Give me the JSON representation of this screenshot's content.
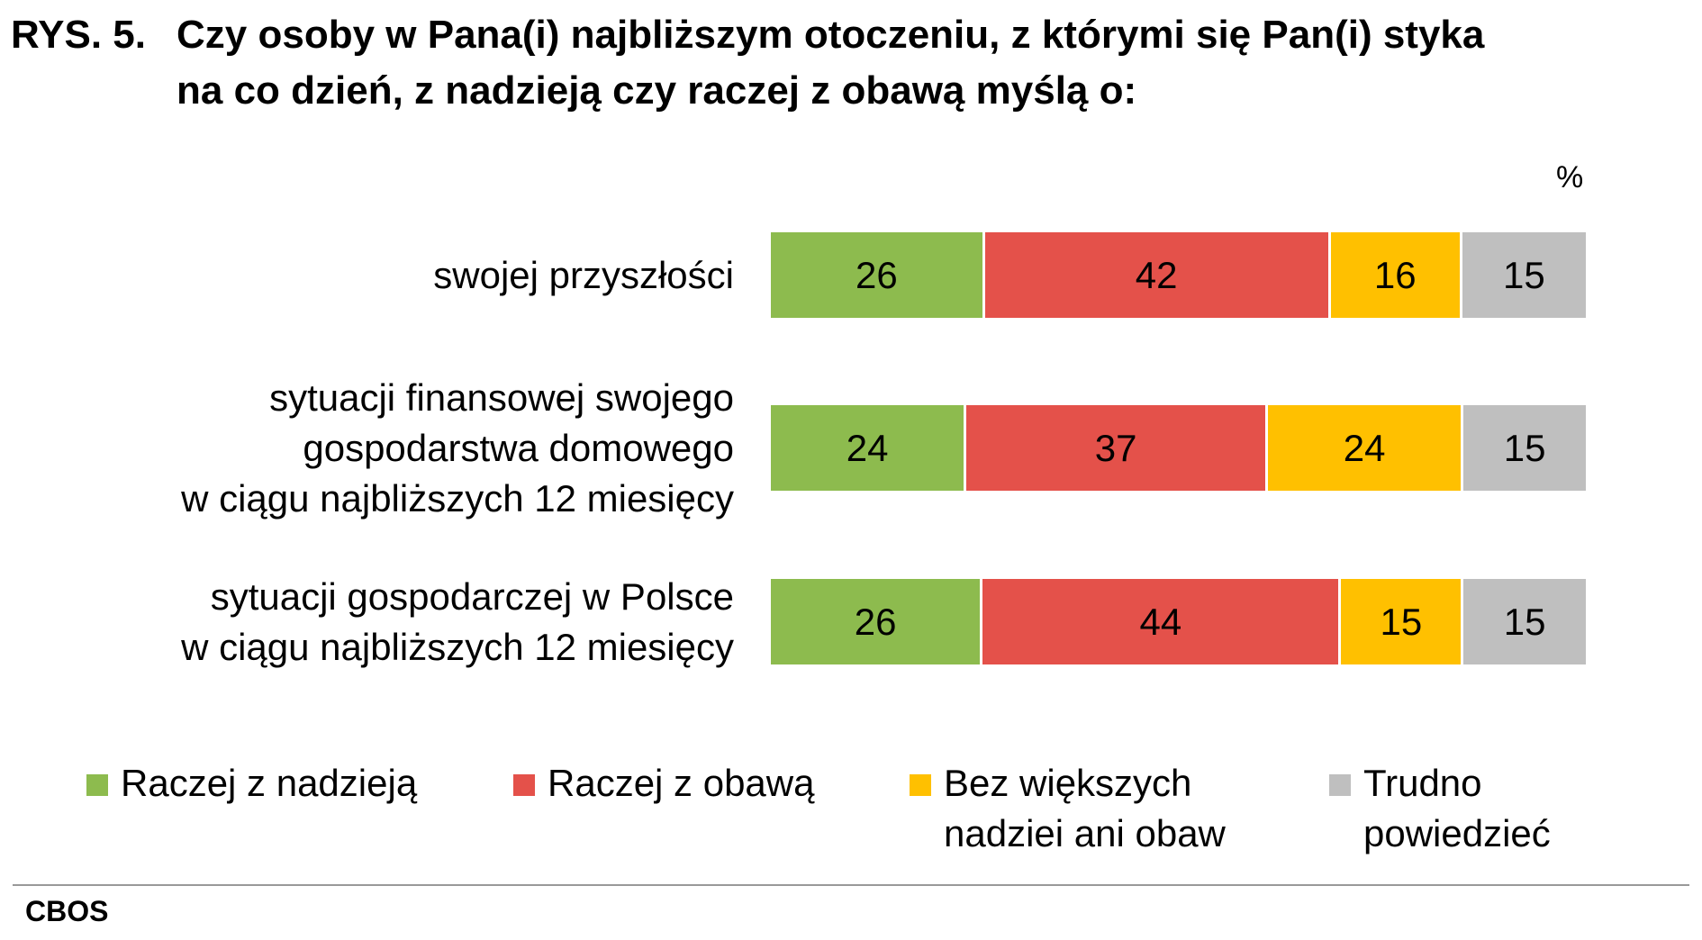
{
  "title": {
    "prefix": "RYS. 5.",
    "line1": "Czy osoby w Pana(i) najbliższym otoczeniu, z którymi się Pan(i) styka",
    "line2": "na co dzień, z nadzieją czy raczej z obawą myślą o:"
  },
  "unit_label": "%",
  "source": "CBOS",
  "chart_data": {
    "type": "bar",
    "orientation": "horizontal",
    "stacked": true,
    "unit": "%",
    "categories": [
      [
        "swojej przyszłości"
      ],
      [
        "sytuacji finansowej swojego",
        "gospodarstwa domowego",
        "w ciągu najbliższych 12 miesięcy"
      ],
      [
        "sytuacji gospodarczej w Polsce",
        "w ciągu najbliższych 12 miesięcy"
      ]
    ],
    "series": [
      {
        "name": [
          "Raczej z nadzieją"
        ],
        "color": "#8dbb4e",
        "values": [
          26,
          24,
          26
        ]
      },
      {
        "name": [
          "Raczej z obawą"
        ],
        "color": "#e4514a",
        "values": [
          42,
          37,
          44
        ]
      },
      {
        "name": [
          "Bez większych",
          "nadziei ani obaw"
        ],
        "color": "#ffc000",
        "values": [
          16,
          24,
          15
        ]
      },
      {
        "name": [
          "Trudno",
          "powiedzieć"
        ],
        "color": "#bfbfbf",
        "values": [
          15,
          15,
          15
        ]
      }
    ],
    "legend_position": "bottom",
    "grid": false
  }
}
